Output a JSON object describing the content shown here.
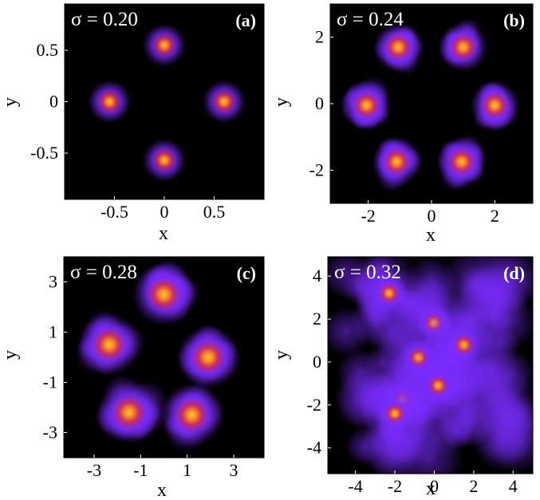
{
  "colors": {
    "background": "#000000",
    "halo": "#7a2cff",
    "mid": "#c8285a",
    "core": "#ff8a20",
    "hot": "#ffd040"
  },
  "chart_data": [
    {
      "type": "heatmap",
      "panel_label": "(a)",
      "annotation": "σ = 0.20",
      "xlabel": "x",
      "ylabel": "y",
      "xlim": [
        -1.0,
        1.0
      ],
      "ylim": [
        -0.95,
        0.95
      ],
      "xticks": [
        -0.5,
        0,
        0.5
      ],
      "xtick_labels": [
        "-0.5",
        "0",
        "0.5"
      ],
      "yticks": [
        -0.5,
        0,
        0.5
      ],
      "ytick_labels": [
        "-0.5",
        "0",
        "0.5"
      ],
      "spread": "low",
      "blobs": [
        {
          "x": 0.0,
          "y": 0.55
        },
        {
          "x": -0.55,
          "y": 0.0
        },
        {
          "x": 0.6,
          "y": 0.0
        },
        {
          "x": 0.0,
          "y": -0.57
        }
      ]
    },
    {
      "type": "heatmap",
      "panel_label": "(b)",
      "annotation": "σ = 0.24",
      "xlabel": "x",
      "ylabel": "y",
      "xlim": [
        -3.2,
        3.2
      ],
      "ylim": [
        -3.0,
        3.0
      ],
      "xticks": [
        -2,
        0,
        2
      ],
      "xtick_labels": [
        "-2",
        "0",
        "2"
      ],
      "yticks": [
        -2,
        0,
        2
      ],
      "ytick_labels": [
        "-2",
        "0",
        "2"
      ],
      "spread": "low-medium",
      "blobs": [
        {
          "x": -1.05,
          "y": 1.7
        },
        {
          "x": 1.0,
          "y": 1.7
        },
        {
          "x": -2.05,
          "y": -0.05
        },
        {
          "x": 2.0,
          "y": -0.05
        },
        {
          "x": -1.1,
          "y": -1.75
        },
        {
          "x": 0.95,
          "y": -1.75
        }
      ]
    },
    {
      "type": "heatmap",
      "panel_label": "(c)",
      "annotation": "σ = 0.28",
      "xlabel": "x",
      "ylabel": "y",
      "xlim": [
        -4.3,
        4.3
      ],
      "ylim": [
        -4.0,
        4.0
      ],
      "xticks": [
        -3,
        -1,
        1,
        3
      ],
      "xtick_labels": [
        "-3",
        "-1",
        "1",
        "3"
      ],
      "yticks": [
        -3,
        -1,
        1,
        3
      ],
      "ytick_labels": [
        "-3",
        "-1",
        "1",
        "3"
      ],
      "spread": "medium",
      "blobs": [
        {
          "x": 0.0,
          "y": 2.5
        },
        {
          "x": -2.35,
          "y": 0.5
        },
        {
          "x": 1.9,
          "y": 0.0
        },
        {
          "x": -1.5,
          "y": -2.2
        },
        {
          "x": 1.2,
          "y": -2.3
        }
      ]
    },
    {
      "type": "heatmap",
      "panel_label": "(d)",
      "annotation": "σ = 0.32",
      "xlabel": "x",
      "ylabel": "y",
      "xlim": [
        -5.4,
        5.0
      ],
      "ylim": [
        -5.2,
        4.9
      ],
      "xticks": [
        -4,
        -2,
        0,
        2,
        4
      ],
      "xtick_labels": [
        "-4",
        "-2",
        "0",
        "2",
        "4"
      ],
      "yticks": [
        -4,
        -2,
        0,
        2,
        4
      ],
      "ytick_labels": [
        "-4",
        "-2",
        "0",
        "2",
        "4"
      ],
      "spread": "high",
      "blobs": [
        {
          "x": -2.3,
          "y": 3.2
        },
        {
          "x": 0.0,
          "y": 1.8
        },
        {
          "x": -0.8,
          "y": 0.2
        },
        {
          "x": 0.2,
          "y": -1.1
        },
        {
          "x": -1.6,
          "y": -1.8
        },
        {
          "x": -2.0,
          "y": -2.4
        },
        {
          "x": 1.5,
          "y": 0.8
        }
      ]
    }
  ]
}
